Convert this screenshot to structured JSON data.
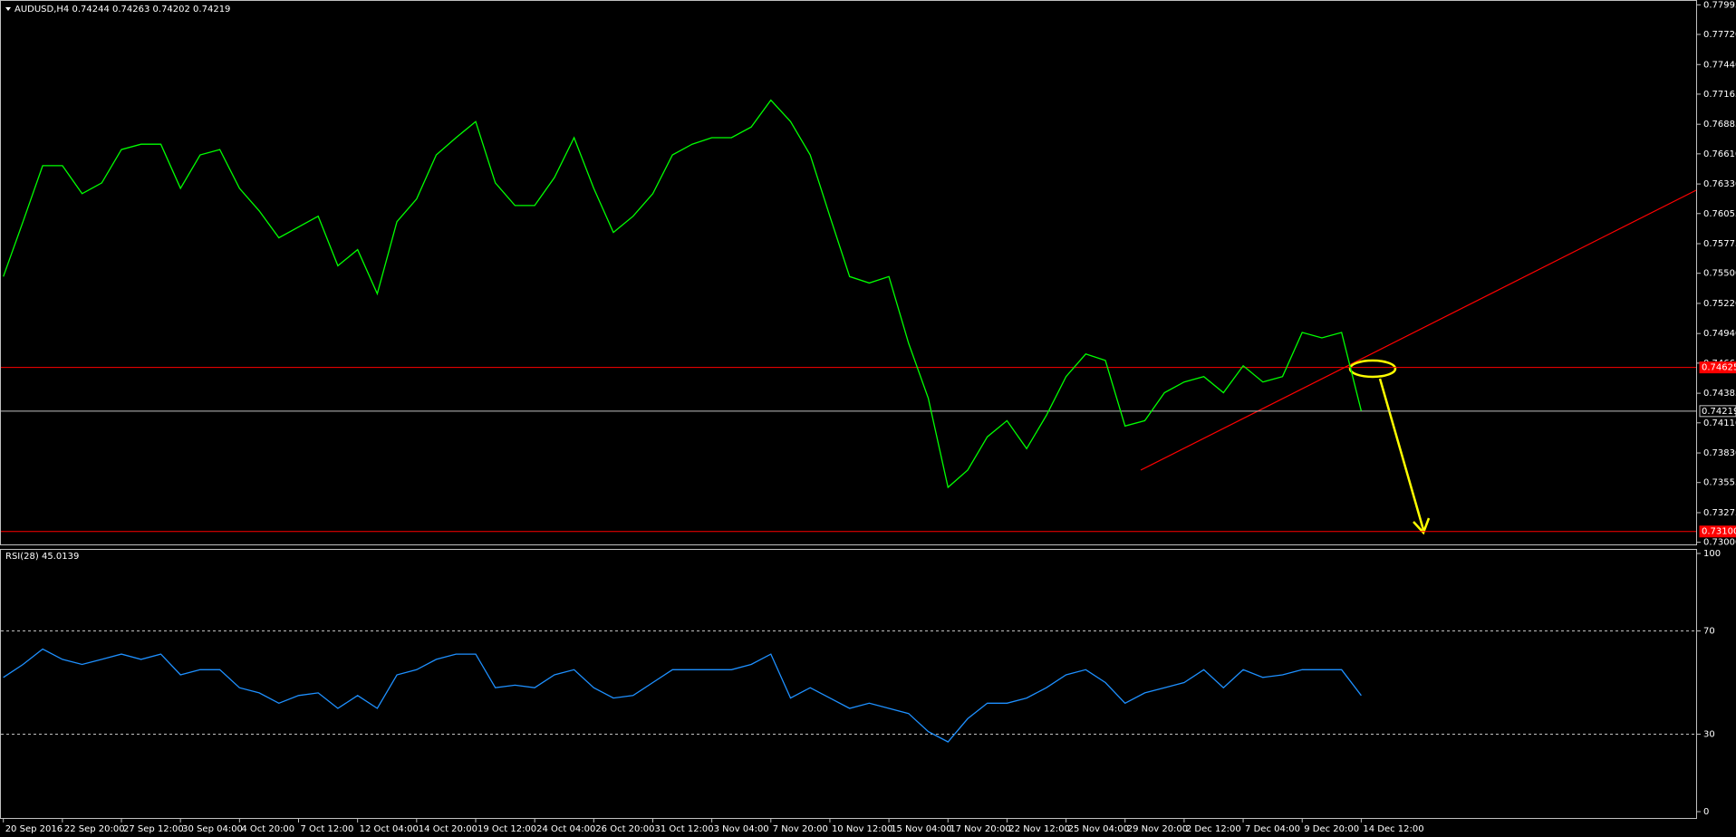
{
  "chart_data": [
    {
      "type": "line",
      "title": "AUDUSD,H4 0.74244 0.74263 0.74202 0.74219",
      "categories": [
        "20 Sep 2016",
        null,
        null,
        "22 Sep 20:00",
        null,
        null,
        "27 Sep 12:00",
        null,
        null,
        "30 Sep 04:00",
        null,
        null,
        "4 Oct 20:00",
        null,
        null,
        "7 Oct 12:00",
        null,
        null,
        "12 Oct 04:00",
        null,
        null,
        "14 Oct 20:00",
        null,
        null,
        "19 Oct 12:00",
        null,
        null,
        "24 Oct 04:00",
        null,
        null,
        "26 Oct 20:00",
        null,
        null,
        "31 Oct 12:00",
        null,
        null,
        "3 Nov 04:00",
        null,
        null,
        "7 Nov 20:00",
        null,
        null,
        "10 Nov 12:00",
        null,
        null,
        "15 Nov 04:00",
        null,
        null,
        "17 Nov 20:00",
        null,
        null,
        "22 Nov 12:00",
        null,
        null,
        "25 Nov 04:00",
        null,
        null,
        "29 Nov 20:00",
        null,
        null,
        "2 Dec 12:00",
        null,
        null,
        "7 Dec 04:00",
        null,
        null,
        "9 Dec 20:00",
        null,
        null,
        "14 Dec 12:00",
        null,
        null
      ],
      "series": [
        {
          "color": "#00ff00",
          "values": [
            0.7547,
            0.7598,
            0.765,
            0.765,
            0.7624,
            0.7634,
            0.7665,
            0.767,
            0.767,
            0.7629,
            0.766,
            0.7665,
            0.7629,
            0.7608,
            0.7583,
            0.7593,
            0.7603,
            0.7557,
            0.7572,
            0.7531,
            0.7598,
            0.7619,
            0.766,
            0.7676,
            0.7691,
            0.7634,
            0.7613,
            0.7613,
            0.7639,
            0.7676,
            0.7629,
            0.7588,
            0.7603,
            0.7624,
            0.766,
            0.767,
            0.7676,
            0.7676,
            0.7686,
            0.7711,
            0.7691,
            0.766,
            0.7603,
            0.7547,
            0.7541,
            0.7547,
            0.7485,
            0.7434,
            0.7351,
            0.7367,
            0.7398,
            0.7413,
            0.7387,
            0.7418,
            0.7454,
            0.7475,
            0.7469,
            0.7408,
            0.7413,
            0.7439,
            0.7449,
            0.7454,
            0.7439,
            0.7464,
            0.7449,
            0.7454,
            0.7495,
            0.749,
            0.7495,
            0.7422,
            null,
            null
          ]
        }
      ],
      "ylim": [
        0.7298,
        0.7804
      ],
      "yticks": [
        0.77995,
        {
          "value": 0.7772,
          "label": "0.77720"
        },
        {
          "value": 0.7744,
          "label": "0.77440"
        },
        0.77165,
        0.76885,
        {
          "value": 0.7661,
          "label": "0.76610"
        },
        {
          "value": 0.7633,
          "label": "0.76330"
        },
        0.76055,
        0.75775,
        {
          "value": 0.755,
          "label": "0.75500"
        },
        {
          "value": 0.7522,
          "label": "0.75220"
        },
        {
          "value": 0.7494,
          "label": "0.74940"
        },
        0.74665,
        0.74385,
        {
          "value": 0.7411,
          "label": "0.74110"
        },
        {
          "value": 0.7383,
          "label": "0.73830"
        },
        0.73555,
        0.73275,
        {
          "value": 0.73,
          "label": "0.73000"
        }
      ],
      "hlines": [
        {
          "value": 0.74625,
          "color": "#ff0000"
        },
        {
          "value": 0.731,
          "label": "0.73100",
          "color": "#ff0000"
        },
        {
          "value": 0.74219,
          "color": "#c0c0c0"
        }
      ]
    },
    {
      "type": "line",
      "title": "RSI(28) 45.0139",
      "series": [
        {
          "color": "#1e90ff",
          "values": [
            52,
            57,
            63,
            59,
            57,
            59,
            61,
            59,
            61,
            53,
            55,
            55,
            48,
            46,
            42,
            45,
            46,
            40,
            45,
            40,
            53,
            55,
            59,
            61,
            61,
            48,
            49,
            48,
            53,
            55,
            48,
            44,
            45,
            50,
            55,
            55,
            55,
            55,
            57,
            61,
            44,
            48,
            44,
            40,
            42,
            40,
            38,
            31,
            27,
            36,
            42,
            42,
            44,
            48,
            53,
            55,
            50,
            42,
            46,
            48,
            50,
            55,
            48,
            55,
            52,
            53,
            55,
            55,
            55,
            45,
            null,
            null
          ]
        }
      ],
      "ylim": [
        0,
        100
      ],
      "yticks": [
        0,
        30,
        70,
        100
      ]
    }
  ]
}
